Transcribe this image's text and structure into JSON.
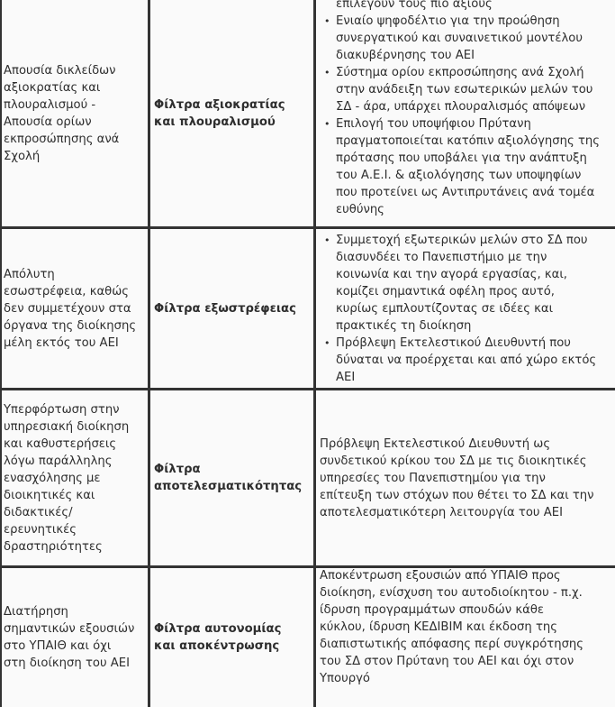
{
  "rows": [
    {
      "problem": "Απουσία δικλείδων\nαξιοκρατίας και\nπλουραλισμού -\nΑπουσία ορίων\nεκπροσώπησης ανά\nΣχολή",
      "filter": "Φίλτρα αξιοκρατίας\nκαι πλουραλισμού",
      "measures_continued": "επιλέγουν τους πιο άξιους",
      "measures": [
        "Ενιαίο ψηφοδέλτιο για την προώθηση\nσυνεργατικού και συναινετικού μοντέλου\nδιακυβέρνησης του ΑΕΙ",
        "Σύστημα ορίου εκπροσώπησης ανά Σχολή\nστην ανάδειξη των εσωτερικών μελών του\nΣΔ - άρα, υπάρχει πλουραλισμός απόψεων",
        "Επιλογή του υποψήφιου Πρύτανη\nπραγματοποιείται κατόπιν αξιολόγησης της\nπρότασης που υποβάλει για την ανάπτυξη\nτου Α.Ε.Ι. & αξιολόγησης των υποψηφίων\nπου προτείνει ως Αντιπρυτάνεις ανά τομέα\nευθύνης"
      ]
    },
    {
      "problem": "Απόλυτη\nεσωστρέφεια, καθώς\nδεν συμμετέχουν στα\nόργανα της διοίκησης\nμέλη εκτός του ΑΕΙ",
      "filter": "Φίλτρα εξωστρέφειας",
      "measures": [
        "Συμμετοχή εξωτερικών μελών στο ΣΔ που\nδιασυνδέει το Πανεπιστήμιο με την\nκοινωνία και την αγορά εργασίας, και,\nκομίζει σημαντικά οφέλη προς αυτό,\nκυρίως εμπλουτίζοντας σε ιδέες και\nπρακτικές τη διοίκηση",
        "Πρόβλεψη Εκτελεστικού Διευθυντή που\nδύναται να προέρχεται και από χώρο εκτός\nΑΕΙ"
      ]
    },
    {
      "problem": "Υπερφόρτωση στην\nυπηρεσιακή διοίκηση\nκαι καθυστερήσεις\nλόγω παράλληλης\nενασχόλησης με\nδιοικητικές και\nδιδακτικές/\nερευνητικές\nδραστηριότητες",
      "filter": "Φίλτρα\nαποτελεσματικότητας",
      "measure_text": "Πρόβλεψη Εκτελεστικού Διευθυντή ως\nσυνδετικού κρίκου του ΣΔ με τις διοικητικές\nυπηρεσίες του Πανεπιστημίου για την\nεπίτευξη των στόχων που θέτει το ΣΔ και την\nαποτελεσματικότερη λειτουργία του ΑΕΙ"
    },
    {
      "problem": "Διατήρηση\nσημαντικών εξουσιών\nστο ΥΠΑΙΘ και όχι\nστη διοίκηση του ΑΕΙ",
      "filter": "Φίλτρα αυτονομίας\nκαι αποκέντρωσης",
      "measure_text": "Αποκέντρωση εξουσιών από ΥΠΑΙΘ προς\nδιοίκηση, ενίσχυση του αυτοδιοίκητου - π.χ.\nίδρυση προγραμμάτων σπουδών κάθε\nκύκλου, ίδρυση ΚΕΔΙΒΙΜ και έκδοση της\nδιαπιστωτικής απόφασης περί συγκρότησης\nτου ΣΔ στον Πρύτανη του ΑΕΙ και όχι στον\nΥπουργό"
    }
  ]
}
